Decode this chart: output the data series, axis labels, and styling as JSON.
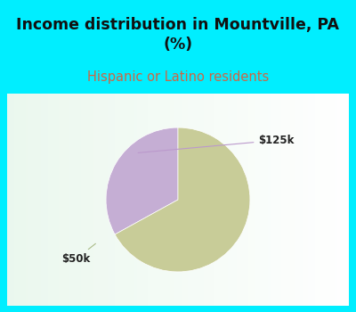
{
  "title": "Income distribution in Mountville, PA\n(%)",
  "subtitle": "Hispanic or Latino residents",
  "slices": [
    {
      "label": "$125k",
      "value": 33,
      "color": "#c5aed4"
    },
    {
      "label": "$50k",
      "value": 67,
      "color": "#c8cc98"
    }
  ],
  "header_bg": "#00eeff",
  "title_color": "#111111",
  "subtitle_color": "#cc6644",
  "label_color": "#222222",
  "start_angle": 90,
  "title_fontsize": 12.5,
  "subtitle_fontsize": 10.5,
  "label_fontsize": 8.5
}
